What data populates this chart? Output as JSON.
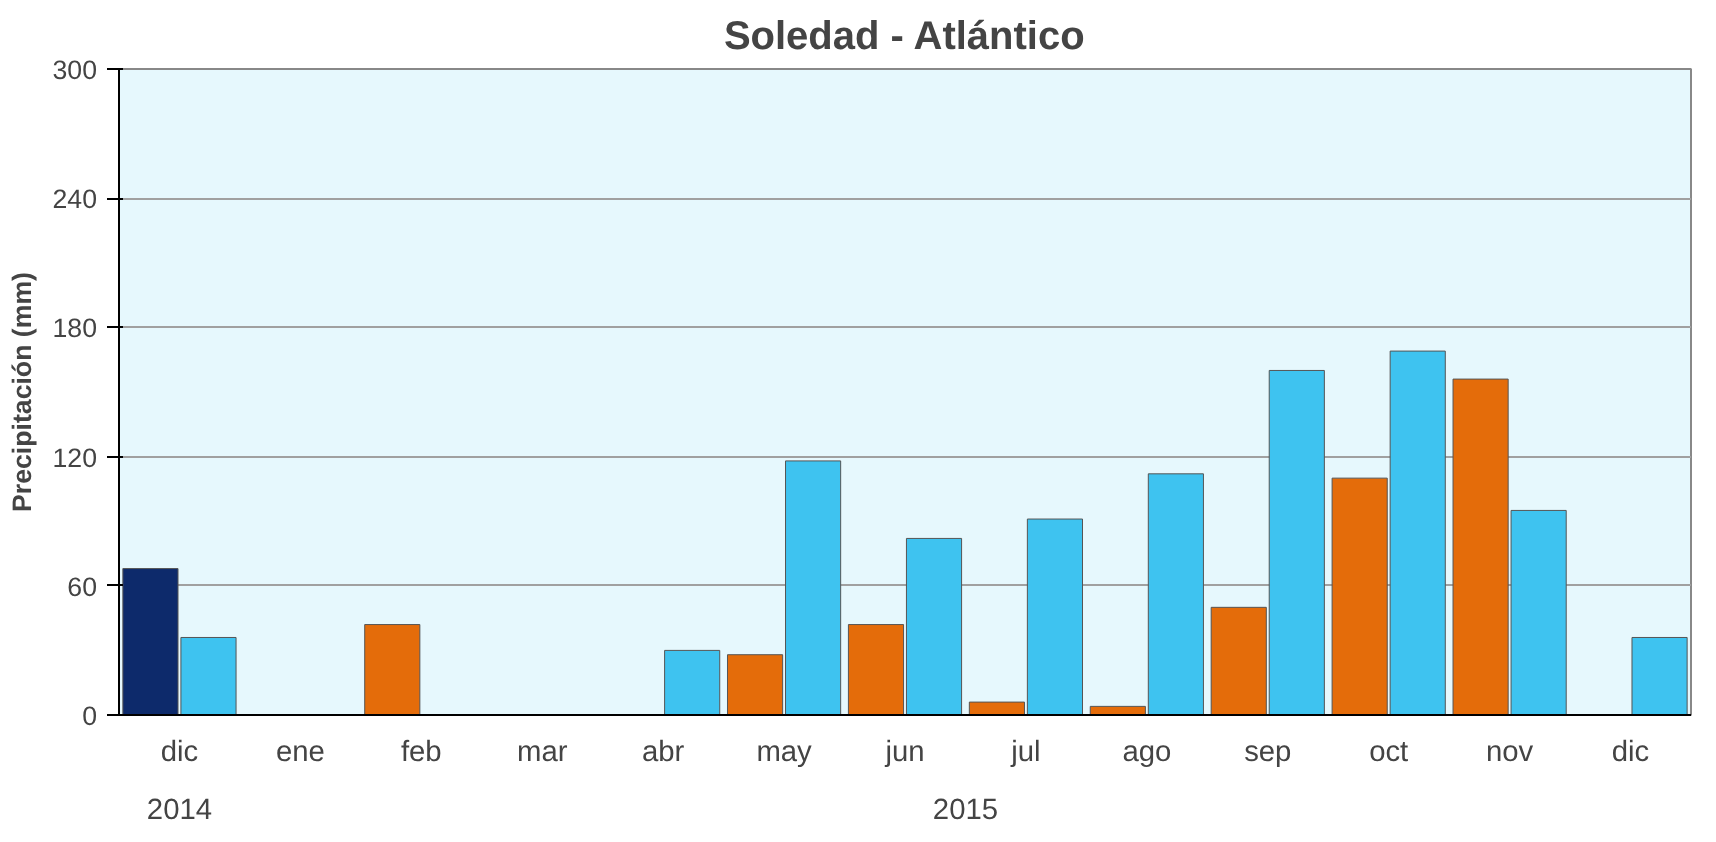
{
  "chart_data": {
    "type": "bar",
    "title": "Soledad - Atlántico",
    "ylabel": "Precipitación (mm)",
    "categories": [
      "dic",
      "ene",
      "feb",
      "mar",
      "abr",
      "may",
      "jun",
      "jul",
      "ago",
      "sep",
      "oct",
      "nov",
      "dic"
    ],
    "series": [
      {
        "colors": [
          "#0d2a6b",
          "#e46c0a",
          "#e46c0a",
          "#e46c0a",
          "#e46c0a",
          "#e46c0a",
          "#e46c0a",
          "#e46c0a",
          "#e46c0a",
          "#e46c0a",
          "#e46c0a",
          "#e46c0a",
          "#e46c0a"
        ],
        "values": [
          68,
          null,
          42,
          null,
          null,
          28,
          42,
          6,
          4,
          50,
          110,
          156,
          null
        ]
      },
      {
        "color": "#3ec3f0",
        "values": [
          36,
          null,
          null,
          null,
          30,
          118,
          82,
          91,
          112,
          160,
          169,
          95,
          36
        ]
      }
    ],
    "annotations": [
      "2014",
      "2015"
    ],
    "ylim": [
      0,
      300
    ],
    "yticks": [
      0,
      60,
      120,
      180,
      240,
      300
    ],
    "grid": "y"
  }
}
